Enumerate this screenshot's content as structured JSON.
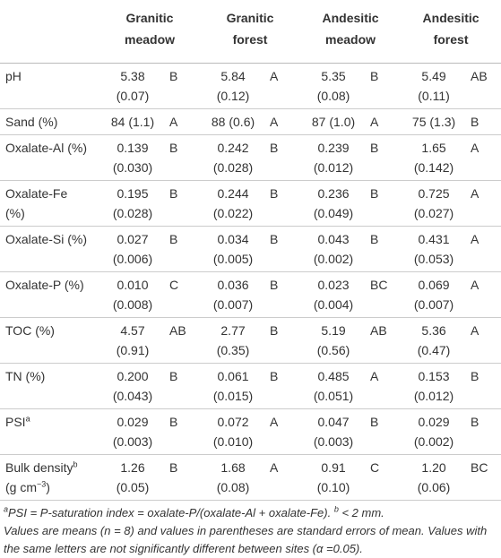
{
  "table": {
    "columns": [
      [
        "Granitic",
        "meadow"
      ],
      [
        "Granitic",
        "forest"
      ],
      [
        "Andesitic",
        "meadow"
      ],
      [
        "Andesitic",
        "forest"
      ]
    ],
    "rows": [
      {
        "label": [
          [
            {
              "text": "pH"
            }
          ]
        ],
        "cells": [
          {
            "lines": [
              "5.38",
              "(0.07)"
            ],
            "group": "B"
          },
          {
            "lines": [
              "5.84",
              "(0.12)"
            ],
            "group": "A"
          },
          {
            "lines": [
              "5.35",
              "(0.08)"
            ],
            "group": "B"
          },
          {
            "lines": [
              "5.49",
              "(0.11)"
            ],
            "group": "AB"
          }
        ]
      },
      {
        "label": [
          [
            {
              "text": "Sand (%)"
            }
          ]
        ],
        "cells": [
          {
            "lines": [
              "84 (1.1)"
            ],
            "group": "A"
          },
          {
            "lines": [
              "88 (0.6)"
            ],
            "group": "A"
          },
          {
            "lines": [
              "87 (1.0)"
            ],
            "group": "A"
          },
          {
            "lines": [
              "75 (1.3)"
            ],
            "group": "B"
          }
        ]
      },
      {
        "label": [
          [
            {
              "text": "Oxalate-Al (%)"
            }
          ]
        ],
        "cells": [
          {
            "lines": [
              "0.139",
              "(0.030)"
            ],
            "group": "B"
          },
          {
            "lines": [
              "0.242",
              "(0.028)"
            ],
            "group": "B"
          },
          {
            "lines": [
              "0.239",
              "(0.012)"
            ],
            "group": "B"
          },
          {
            "lines": [
              "1.65",
              "(0.142)"
            ],
            "group": "A"
          }
        ]
      },
      {
        "label": [
          [
            {
              "text": "Oxalate-Fe"
            }
          ],
          [
            {
              "text": "(%)"
            }
          ]
        ],
        "cells": [
          {
            "lines": [
              "0.195",
              "(0.028)"
            ],
            "group": "B"
          },
          {
            "lines": [
              "0.244",
              "(0.022)"
            ],
            "group": "B"
          },
          {
            "lines": [
              "0.236",
              "(0.049)"
            ],
            "group": "B"
          },
          {
            "lines": [
              "0.725",
              "(0.027)"
            ],
            "group": "A"
          }
        ]
      },
      {
        "label": [
          [
            {
              "text": "Oxalate-Si (%)"
            }
          ]
        ],
        "cells": [
          {
            "lines": [
              "0.027",
              "(0.006)"
            ],
            "group": "B"
          },
          {
            "lines": [
              "0.034",
              "(0.005)"
            ],
            "group": "B"
          },
          {
            "lines": [
              "0.043",
              "(0.002)"
            ],
            "group": "B"
          },
          {
            "lines": [
              "0.431",
              "(0.053)"
            ],
            "group": "A"
          }
        ]
      },
      {
        "label": [
          [
            {
              "text": "Oxalate-P (%)"
            }
          ]
        ],
        "cells": [
          {
            "lines": [
              "0.010",
              "(0.008)"
            ],
            "group": "C"
          },
          {
            "lines": [
              "0.036",
              "(0.007)"
            ],
            "group": "B"
          },
          {
            "lines": [
              "0.023",
              "(0.004)"
            ],
            "group": "BC"
          },
          {
            "lines": [
              "0.069",
              "(0.007)"
            ],
            "group": "A"
          }
        ]
      },
      {
        "label": [
          [
            {
              "text": "TOC (%)"
            }
          ]
        ],
        "cells": [
          {
            "lines": [
              "4.57",
              "(0.91)"
            ],
            "group": "AB"
          },
          {
            "lines": [
              "2.77",
              "(0.35)"
            ],
            "group": "B"
          },
          {
            "lines": [
              "5.19",
              "(0.56)"
            ],
            "group": "AB"
          },
          {
            "lines": [
              "5.36",
              "(0.47)"
            ],
            "group": "A"
          }
        ]
      },
      {
        "label": [
          [
            {
              "text": "TN (%)"
            }
          ]
        ],
        "cells": [
          {
            "lines": [
              "0.200",
              "(0.043)"
            ],
            "group": "B"
          },
          {
            "lines": [
              "0.061",
              "(0.015)"
            ],
            "group": "B"
          },
          {
            "lines": [
              "0.485",
              "(0.051)"
            ],
            "group": "A"
          },
          {
            "lines": [
              "0.153",
              "(0.012)"
            ],
            "group": "B"
          }
        ]
      },
      {
        "label": [
          [
            {
              "text": "PSI"
            },
            {
              "sup": "a"
            }
          ]
        ],
        "cells": [
          {
            "lines": [
              "0.029",
              "(0.003)"
            ],
            "group": "B"
          },
          {
            "lines": [
              "0.072",
              "(0.010)"
            ],
            "group": "A"
          },
          {
            "lines": [
              "0.047",
              "(0.003)"
            ],
            "group": "B"
          },
          {
            "lines": [
              "0.029",
              "(0.002)"
            ],
            "group": "B"
          }
        ]
      },
      {
        "label": [
          [
            {
              "text": "Bulk density"
            },
            {
              "sup": "b"
            }
          ],
          [
            {
              "text": "(g cm"
            },
            {
              "sup": "−3"
            },
            {
              "text": ")"
            }
          ]
        ],
        "cells": [
          {
            "lines": [
              "1.26",
              "(0.05)"
            ],
            "group": "B"
          },
          {
            "lines": [
              "1.68",
              "(0.08)"
            ],
            "group": "A"
          },
          {
            "lines": [
              "0.91",
              "(0.10)"
            ],
            "group": "C"
          },
          {
            "lines": [
              "1.20",
              "(0.06)"
            ],
            "group": "BC"
          }
        ]
      }
    ],
    "notes": [
      [
        {
          "sup": "a"
        },
        {
          "text": "PSI = P-saturation index = oxalate-P/(oxalate-Al + oxalate-Fe). "
        },
        {
          "sup": "b"
        },
        {
          "text": " < 2 mm."
        }
      ],
      [
        {
          "text": "Values are means (n = 8) and values in parentheses are standard errors of mean. Values with the same letters are not significantly different between sites (α =0.05)."
        }
      ]
    ]
  }
}
